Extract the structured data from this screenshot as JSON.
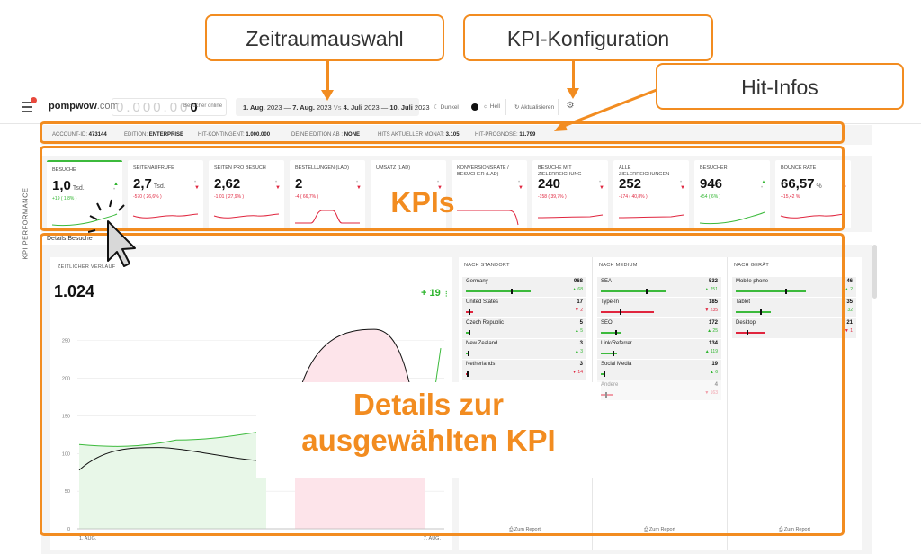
{
  "annotations": {
    "zeitraum": "Zeitraumauswahl",
    "kpi_konfig": "KPI-Konfiguration",
    "hit_infos": "Hit-Infos",
    "kpis": "KPIs",
    "details_line1": "Details zur",
    "details_line2": "ausgewählten KPI"
  },
  "colors": {
    "accent": "#f28c20",
    "up": "#2fb52f",
    "down": "#e0253e"
  },
  "topbar": {
    "logo_name": "pompwow",
    "logo_domain": ".com",
    "online_digits": "0.000.00",
    "online_last": "0",
    "online_label": "Besucher online",
    "date_from": "1. Aug.",
    "date_from_year": "2023",
    "date_to": "7. Aug.",
    "date_to_year": "2023",
    "date_vs": "Vs",
    "cmp_from": "4. Juli",
    "cmp_from_year": "2023",
    "cmp_to": "10. Juli",
    "cmp_to_year": "2023",
    "dark": "Dunkel",
    "light": "Hell",
    "refresh": "Aktualisieren"
  },
  "sidebar": {
    "label": "KPI PERFORMANCE"
  },
  "info_bar": {
    "account_label": "ACCOUNT-ID:",
    "account_value": "473144",
    "edition_label": "EDITION:",
    "edition_value": "ENTERPRISE",
    "kontingent_label": "HIT-KONTINGENT:",
    "kontingent_value": "1.000.000",
    "edition_ab_label": "DEINE EDITION AB :",
    "edition_ab_value": "NONE",
    "hits_label": "HITS AKTUELLER MONAT:",
    "hits_value": "3.105",
    "prognose_label": "HIT-PROGNOSE:",
    "prognose_value": "11.799"
  },
  "kpis": [
    {
      "title": "BESUCHE",
      "value": "1,0",
      "unit": "Tsd.",
      "delta": "+19",
      "delta_pct": "( 1,8% )",
      "dir": "up",
      "spark": "up"
    },
    {
      "title": "SEITENAUFRUFE",
      "value": "2,7",
      "unit": "Tsd.",
      "delta": "-570",
      "delta_pct": "( 26,6% )",
      "dir": "down",
      "spark": "down"
    },
    {
      "title": "SEITEN PRO BESUCH",
      "value": "2,62",
      "unit": "",
      "delta": "-1,01",
      "delta_pct": "( 27,9% )",
      "dir": "down",
      "spark": "down"
    },
    {
      "title": "BESTELLUNGEN (LAD)",
      "value": "2",
      "unit": "",
      "delta": "-4",
      "delta_pct": "( 66,7% )",
      "dir": "down",
      "spark": "hump"
    },
    {
      "title": "UMSATZ (LAD)",
      "value": "",
      "unit": "",
      "delta": "",
      "delta_pct": "",
      "dir": "down",
      "spark": "none"
    },
    {
      "title": "KONVERSIONSRATE / BESUCHER (LAD)",
      "value": "",
      "unit": "",
      "delta": "",
      "delta_pct": "",
      "dir": "down",
      "spark": "drop"
    },
    {
      "title": "BESUCHE MIT ZIELERREICHUNG",
      "value": "240",
      "unit": "",
      "delta": "-158",
      "delta_pct": "( 39,7% )",
      "dir": "down",
      "spark": "flat"
    },
    {
      "title": "ALLE ZIELERREICHUNGEN",
      "value": "252",
      "unit": "",
      "delta": "-174",
      "delta_pct": "( 40,8% )",
      "dir": "down",
      "spark": "flat"
    },
    {
      "title": "BESUCHER",
      "value": "946",
      "unit": "",
      "delta": "+54",
      "delta_pct": "( 6% )",
      "dir": "up",
      "spark": "up"
    },
    {
      "title": "BOUNCE RATE",
      "value": "66,57",
      "unit": "%",
      "delta": "+15,42",
      "delta_pct": "%",
      "dir": "down",
      "spark": "down"
    }
  ],
  "details": {
    "tab_label": "Details Besuche",
    "timeline_title": "ZEITLICHER VERLAUF",
    "total": "1.024",
    "delta": "+ 19",
    "y_ticks": [
      "250",
      "200",
      "150",
      "100",
      "50",
      "0"
    ],
    "x_start": "1. AUG.",
    "x_end": "7. AUG."
  },
  "chart_data": {
    "type": "line",
    "ylim": [
      0,
      270
    ],
    "series": [
      {
        "values": [
          112,
          108,
          118,
          130
        ]
      },
      {
        "values": [
          78,
          108,
          92,
          90
        ]
      },
      {
        "values": [
          160,
          258,
          265,
          90
        ]
      },
      {
        "values": [
          90,
          240
        ]
      }
    ]
  },
  "breakdown": [
    {
      "title": "NACH STANDORT",
      "rows": [
        {
          "name": "Germany",
          "value": "968",
          "delta": "▲ 68",
          "dir": "up",
          "bar": 0.55,
          "faded": false
        },
        {
          "name": "United States",
          "value": "17",
          "delta": "▼ 2",
          "dir": "down",
          "bar": 0.06,
          "faded": false
        },
        {
          "name": "Czech Republic",
          "value": "5",
          "delta": "▲ 5",
          "dir": "up",
          "bar": 0.03,
          "faded": false
        },
        {
          "name": "New Zealand",
          "value": "3",
          "delta": "▲ 3",
          "dir": "up",
          "bar": 0.02,
          "faded": false
        },
        {
          "name": "Netherlands",
          "value": "3",
          "delta": "▼ 14",
          "dir": "down",
          "bar": 0.02,
          "faded": false
        }
      ],
      "report": "Zum Report"
    },
    {
      "title": "NACH MEDIUM",
      "rows": [
        {
          "name": "SEA",
          "value": "532",
          "delta": "▲ 251",
          "dir": "up",
          "bar": 0.55,
          "faded": false
        },
        {
          "name": "Type-In",
          "value": "185",
          "delta": "▼ 235",
          "dir": "down",
          "bar": 0.45,
          "faded": false
        },
        {
          "name": "SEO",
          "value": "172",
          "delta": "▲ 25",
          "dir": "up",
          "bar": 0.18,
          "faded": false
        },
        {
          "name": "Link/Referrer",
          "value": "134",
          "delta": "▲ 119",
          "dir": "up",
          "bar": 0.14,
          "faded": false
        },
        {
          "name": "Social Media",
          "value": "19",
          "delta": "▲ 6",
          "dir": "up",
          "bar": 0.03,
          "faded": false
        },
        {
          "name": "Andere",
          "value": "4",
          "delta": "▼ 163",
          "dir": "down",
          "bar": 0.1,
          "faded": true
        }
      ],
      "report": "Zum Report"
    },
    {
      "title": "NACH GERÄT",
      "rows": [
        {
          "name": "Mobile phone",
          "value": "46",
          "delta": "▲ 2",
          "dir": "up",
          "bar": 0.6,
          "faded": false
        },
        {
          "name": "Tablet",
          "value": "35",
          "delta": "▲ 32",
          "dir": "up",
          "bar": 0.3,
          "faded": false
        },
        {
          "name": "Desktop",
          "value": "21",
          "delta": "▼ 1",
          "dir": "down",
          "bar": 0.25,
          "faded": false
        }
      ],
      "report": "Zum Report"
    }
  ]
}
